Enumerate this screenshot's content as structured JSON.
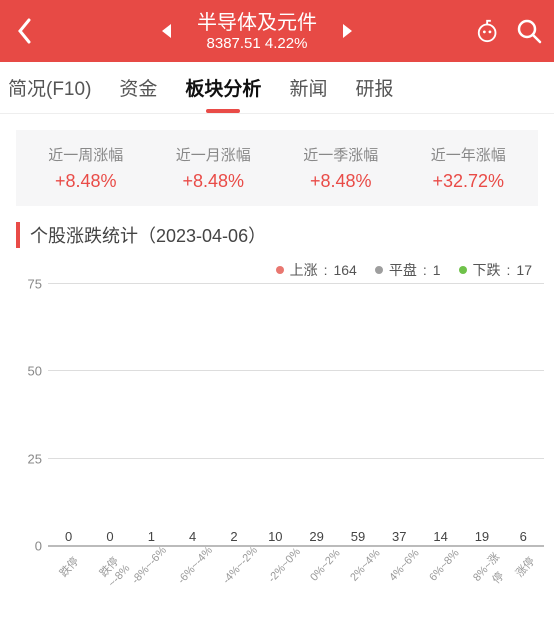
{
  "colors": {
    "header_bg": "#e74a45",
    "accent": "#e94b47",
    "up": "#e97770",
    "flat": "#9e9e9e",
    "down": "#6fc24a",
    "grid": "#dddddd",
    "axis": "#bbbbbb",
    "text_muted": "#888888",
    "period_bg": "#f6f6f7"
  },
  "header": {
    "title": "半导体及元件",
    "index_value": "8387.51",
    "change_pct": "4.22%"
  },
  "tabs": [
    {
      "label": "简况(F10)",
      "active": false
    },
    {
      "label": "资金",
      "active": false
    },
    {
      "label": "板块分析",
      "active": true
    },
    {
      "label": "新闻",
      "active": false
    },
    {
      "label": "研报",
      "active": false
    }
  ],
  "periods": [
    {
      "label": "近一周涨幅",
      "value": "+8.48%",
      "color": "#e94b47"
    },
    {
      "label": "近一月涨幅",
      "value": "+8.48%",
      "color": "#e94b47"
    },
    {
      "label": "近一季涨幅",
      "value": "+8.48%",
      "color": "#e94b47"
    },
    {
      "label": "近一年涨幅",
      "value": "+32.72%",
      "color": "#e94b47"
    }
  ],
  "section_title": "个股涨跌统计（2023-04-06）",
  "legend": {
    "up": {
      "label": "上涨",
      "count": 164
    },
    "flat": {
      "label": "平盘",
      "count": 1
    },
    "down": {
      "label": "下跌",
      "count": 17
    }
  },
  "chart": {
    "type": "bar",
    "ylim": [
      0,
      75
    ],
    "ytick_step": 25,
    "bar_width": 0.62,
    "categories": [
      "跌停",
      "跌停~-8%",
      "-8%~-6%",
      "-6%~-4%",
      "-4%~-2%",
      "-2%~0%",
      "0%~2%",
      "2%~4%",
      "4%~6%",
      "6%~8%",
      "8%~涨停",
      "涨停"
    ],
    "values": [
      0,
      0,
      1,
      4,
      2,
      10,
      29,
      59,
      37,
      14,
      19,
      6
    ],
    "bar_colors": [
      "#6fc24a",
      "#6fc24a",
      "#6fc24a",
      "#6fc24a",
      "#6fc24a",
      "#6fc24a",
      "#e97770",
      "#e97770",
      "#e97770",
      "#e97770",
      "#e97770",
      "#e97770"
    ],
    "label_fontsize": 13,
    "tick_fontsize": 11,
    "background_color": "#ffffff",
    "grid_color": "#dddddd"
  }
}
